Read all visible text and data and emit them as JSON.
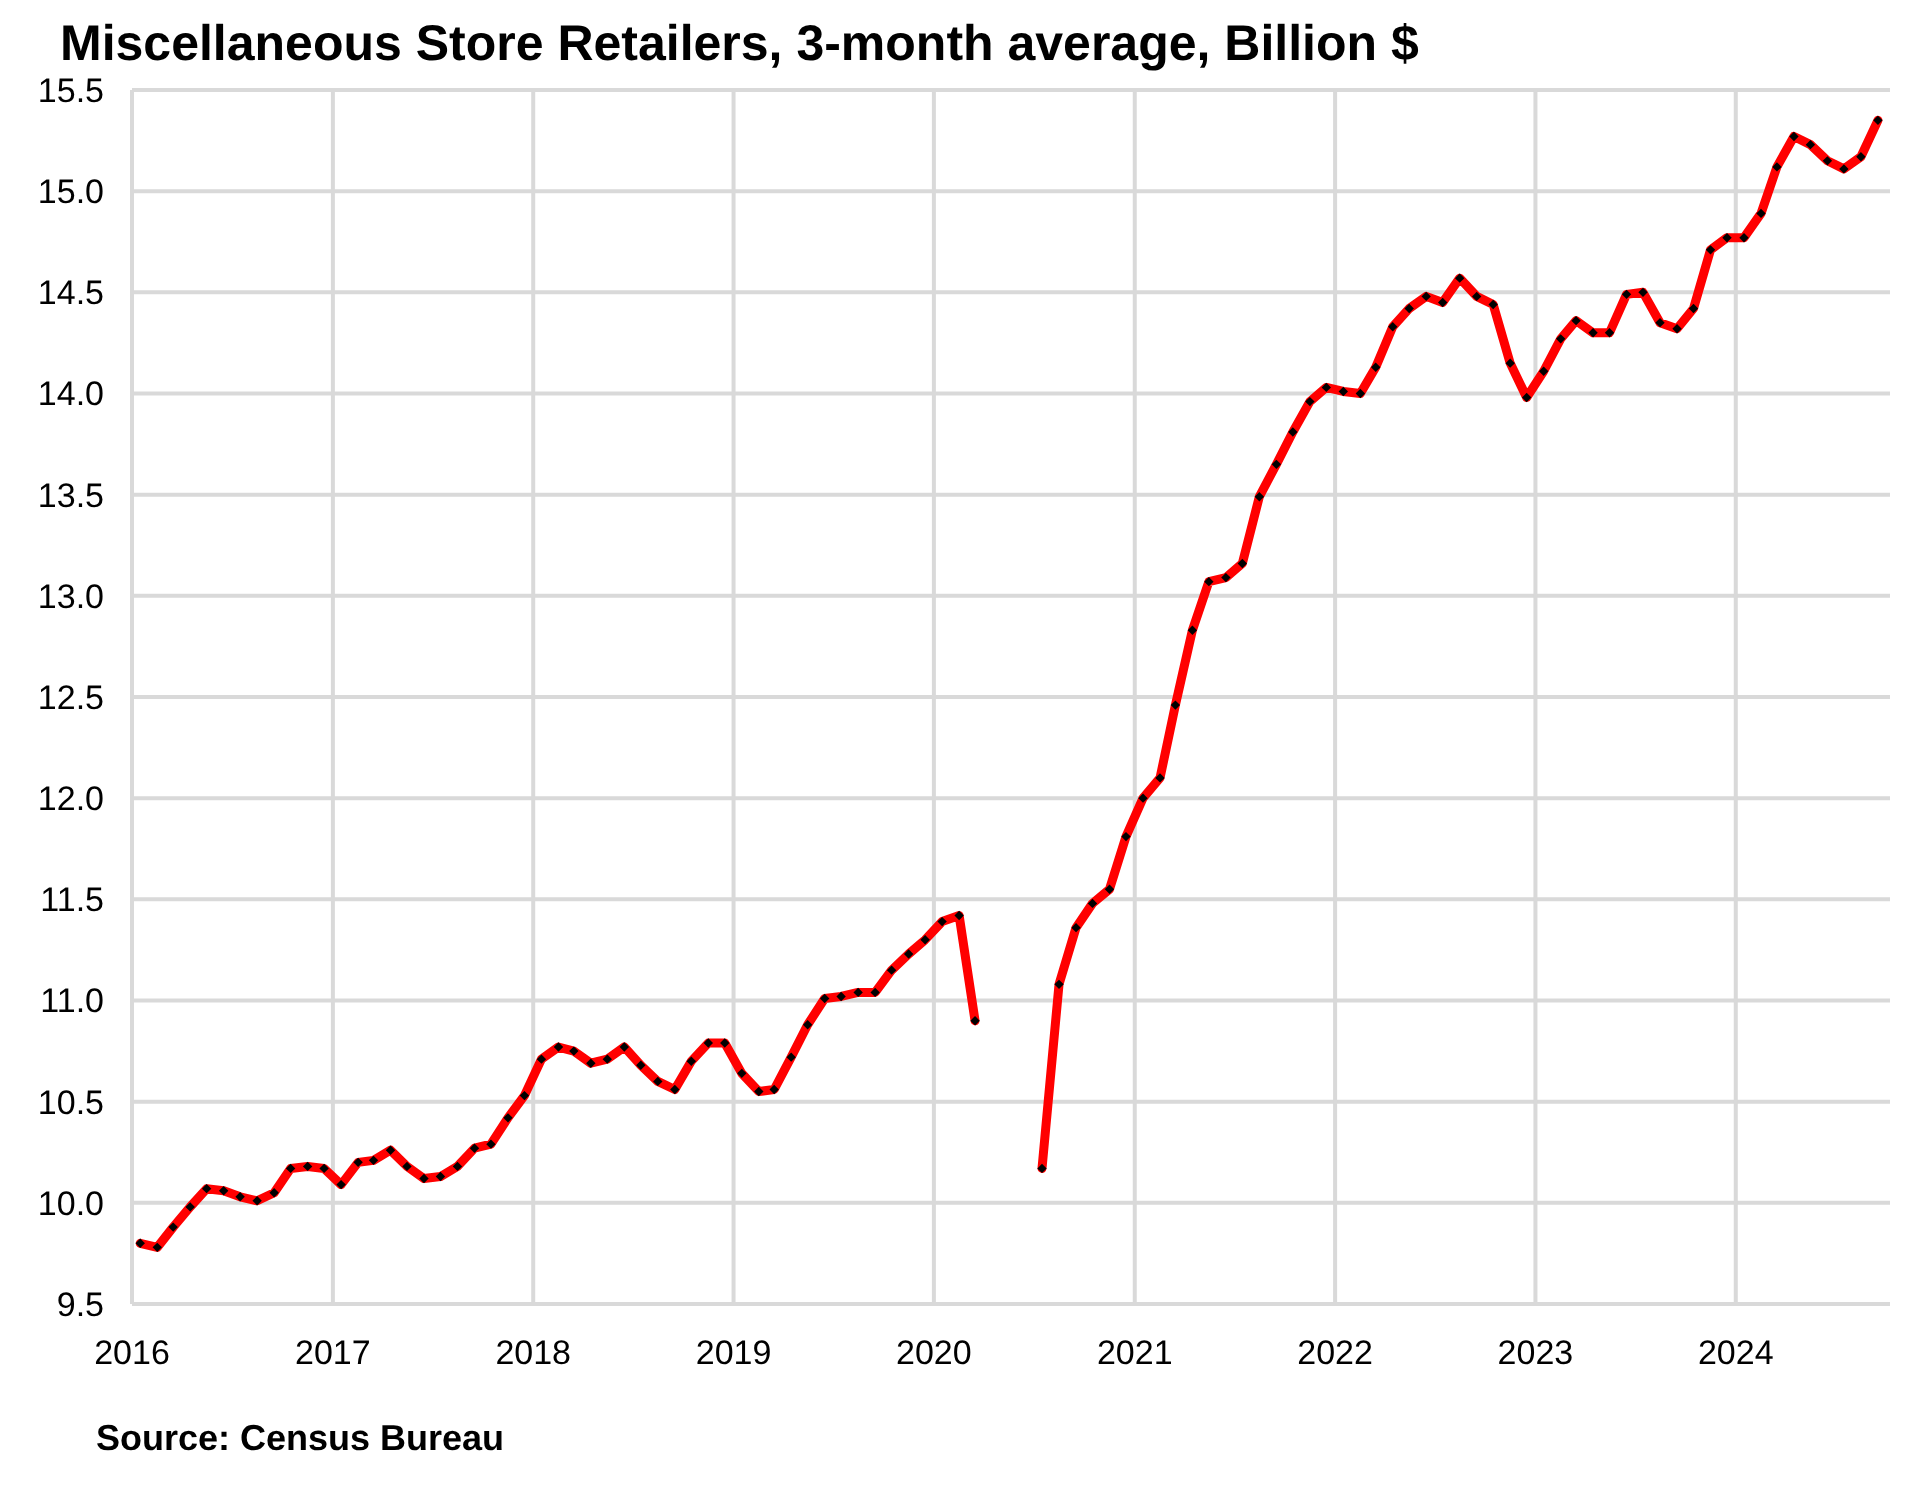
{
  "chart_data": {
    "type": "line",
    "title": "Miscellaneous Store Retailers, 3-month average, Billion $",
    "x": [
      "2016-01-16",
      "2016-02-16",
      "2016-03-16",
      "2016-04-16",
      "2016-05-16",
      "2016-06-16",
      "2016-07-16",
      "2016-08-16",
      "2016-09-16",
      "2016-10-16",
      "2016-11-16",
      "2016-12-16",
      "2017-01-16",
      "2017-02-16",
      "2017-03-16",
      "2017-04-16",
      "2017-05-16",
      "2017-06-16",
      "2017-07-16",
      "2017-08-16",
      "2017-09-16",
      "2017-10-16",
      "2017-11-16",
      "2017-12-16",
      "2018-01-16",
      "2018-02-16",
      "2018-03-16",
      "2018-04-16",
      "2018-05-16",
      "2018-06-16",
      "2018-07-16",
      "2018-08-16",
      "2018-09-16",
      "2018-10-16",
      "2018-11-16",
      "2018-12-16",
      "2019-01-16",
      "2019-02-16",
      "2019-03-16",
      "2019-04-16",
      "2019-05-16",
      "2019-06-16",
      "2019-07-16",
      "2019-08-16",
      "2019-09-16",
      "2019-10-16",
      "2019-11-16",
      "2019-12-16",
      "2020-01-16",
      "2020-02-16",
      "2020-03-16",
      "2020-04-16",
      "2020-05-16",
      "2020-06-16",
      "2020-07-16",
      "2020-08-16",
      "2020-09-16",
      "2020-10-16",
      "2020-11-16",
      "2020-12-16",
      "2021-01-16",
      "2021-02-16",
      "2021-03-16",
      "2021-04-16",
      "2021-05-16",
      "2021-06-16",
      "2021-07-16",
      "2021-08-16",
      "2021-09-16",
      "2021-10-16",
      "2021-11-16",
      "2021-12-16",
      "2022-01-16",
      "2022-02-16",
      "2022-03-16",
      "2022-04-16",
      "2022-05-16",
      "2022-06-16",
      "2022-07-16",
      "2022-08-16",
      "2022-09-16",
      "2022-10-16",
      "2022-11-16",
      "2022-12-16",
      "2023-01-16",
      "2023-02-16",
      "2023-03-16",
      "2023-04-16",
      "2023-05-16",
      "2023-06-16",
      "2023-07-16",
      "2023-08-16",
      "2023-09-16",
      "2023-10-16",
      "2023-11-16",
      "2023-12-16",
      "2024-01-16",
      "2024-02-16",
      "2024-03-16",
      "2024-04-16",
      "2024-05-16",
      "2024-06-16",
      "2024-07-16",
      "2024-08-16",
      "2024-09-16"
    ],
    "series": [
      {
        "color": "#ff0000",
        "values": [
          9.8,
          9.78,
          9.88,
          9.98,
          10.07,
          10.06,
          10.03,
          10.01,
          10.05,
          10.17,
          10.18,
          10.17,
          10.09,
          10.2,
          10.21,
          10.26,
          10.18,
          10.12,
          10.13,
          10.18,
          10.27,
          10.29,
          10.42,
          10.53,
          10.71,
          10.77,
          10.75,
          10.69,
          10.71,
          10.77,
          10.68,
          10.6,
          10.56,
          10.7,
          10.79,
          10.79,
          10.64,
          10.55,
          10.56,
          10.72,
          10.88,
          11.01,
          11.02,
          11.04,
          11.04,
          11.15,
          11.23,
          11.3,
          11.39,
          11.42,
          10.9,
          null,
          null,
          null,
          10.17,
          11.08,
          11.36,
          11.48,
          11.55,
          11.81,
          12.0,
          12.1,
          12.46,
          12.83,
          13.07,
          13.09,
          13.16,
          13.49,
          13.65,
          13.81,
          13.96,
          14.03,
          14.01,
          14.0,
          14.13,
          14.33,
          14.42,
          14.48,
          14.45,
          14.57,
          14.48,
          14.44,
          14.15,
          13.98,
          14.11,
          14.27,
          14.36,
          14.3,
          14.3,
          14.49,
          14.5,
          14.35,
          14.32,
          14.42,
          14.71,
          14.77,
          14.77,
          14.89,
          15.12,
          15.27,
          15.23,
          15.15,
          15.11,
          15.17,
          15.35
        ]
      }
    ],
    "xlim": [
      "2016-01-01",
      "2024-10-08"
    ],
    "xticks": [
      "2016",
      "2017",
      "2018",
      "2019",
      "2020",
      "2021",
      "2022",
      "2023",
      "2024"
    ],
    "ylim": [
      9.5,
      15.5
    ],
    "yticks": [
      {
        "value": 9.5,
        "label": "9.5"
      },
      {
        "value": 10,
        "label": "10.0"
      },
      {
        "value": 10.5,
        "label": "10.5"
      },
      {
        "value": 11,
        "label": "11.0"
      },
      {
        "value": 11.5,
        "label": "11.5"
      },
      {
        "value": 12,
        "label": "12.0"
      },
      {
        "value": 12.5,
        "label": "12.5"
      },
      {
        "value": 13,
        "label": "13.0"
      },
      {
        "value": 13.5,
        "label": "13.5"
      },
      {
        "value": 14,
        "label": "14.0"
      },
      {
        "value": 14.5,
        "label": "14.5"
      },
      {
        "value": 15,
        "label": "15.0"
      },
      {
        "value": 15.5,
        "label": "15.5"
      }
    ],
    "grid": true,
    "marker": "diamond",
    "line_style": "solid",
    "annotations": [
      "Source: Census Bureau"
    ]
  }
}
